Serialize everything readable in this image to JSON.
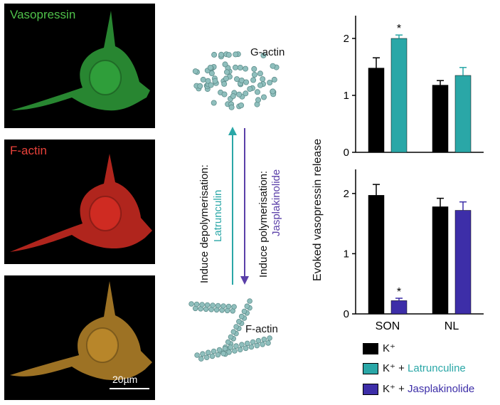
{
  "panels": [
    {
      "label": "Vasopressin",
      "label_color": "#4fc24a",
      "cell_color": "#2f9e3a"
    },
    {
      "label": "F-actin",
      "label_color": "#e8413a",
      "cell_color": "#cf2b22"
    },
    {
      "label": "",
      "label_color": "#ffffff",
      "cell_color": "#b8862a",
      "scale_bar": "20µm"
    }
  ],
  "diagram": {
    "g_actin_label": "G-actin",
    "f_actin_label": "F-actin",
    "depolymerise_text": "Induce depolymerisation:",
    "depolymerise_agent": "Latrunculin",
    "polymerise_text": "Induce polymerisation:",
    "polymerise_agent": "Jasplakinolide",
    "g_actin_color": "#8fbfbd",
    "agent_colors": {
      "latrunculin": "#2aa7a7",
      "jasplakinolide": "#5a3fa8"
    }
  },
  "chart_data": [
    {
      "type": "bar",
      "categories": [
        "SON",
        "NL"
      ],
      "series": [
        {
          "name": "K⁺",
          "values": [
            1.48,
            1.18
          ],
          "errors": [
            0.18,
            0.08
          ],
          "color": "#000000"
        },
        {
          "name": "K⁺ + Latrunculine",
          "values": [
            2.0,
            1.35
          ],
          "errors": [
            0.06,
            0.14
          ],
          "color": "#2aa7a7"
        }
      ],
      "significance": [
        {
          "category": "SON",
          "series": 1,
          "label": "*"
        }
      ],
      "ylabel": "Evoked vasopressin release",
      "ylim": [
        0,
        2.4
      ],
      "yticks": [
        0,
        1,
        2
      ]
    },
    {
      "type": "bar",
      "categories": [
        "SON",
        "NL"
      ],
      "series": [
        {
          "name": "K⁺",
          "values": [
            1.97,
            1.78
          ],
          "errors": [
            0.18,
            0.14
          ],
          "color": "#000000"
        },
        {
          "name": "K⁺ + Jasplakinolide",
          "values": [
            0.22,
            1.72
          ],
          "errors": [
            0.04,
            0.14
          ],
          "color": "#3d2ea8"
        }
      ],
      "significance": [
        {
          "category": "SON",
          "series": 1,
          "label": "*"
        }
      ],
      "ylabel": "Evoked vasopressin release",
      "ylim": [
        0,
        2.4
      ],
      "yticks": [
        0,
        1,
        2
      ]
    }
  ],
  "legend": [
    {
      "prefix": "K⁺",
      "suffix": "",
      "suffix_color": "#111111",
      "color": "#000000"
    },
    {
      "prefix": "K⁺ + ",
      "suffix": "Latrunculine",
      "suffix_color": "#2aa7a7",
      "color": "#2aa7a7"
    },
    {
      "prefix": "K⁺ + ",
      "suffix": "Jasplakinolide",
      "suffix_color": "#3d2ea8",
      "color": "#3d2ea8"
    }
  ]
}
